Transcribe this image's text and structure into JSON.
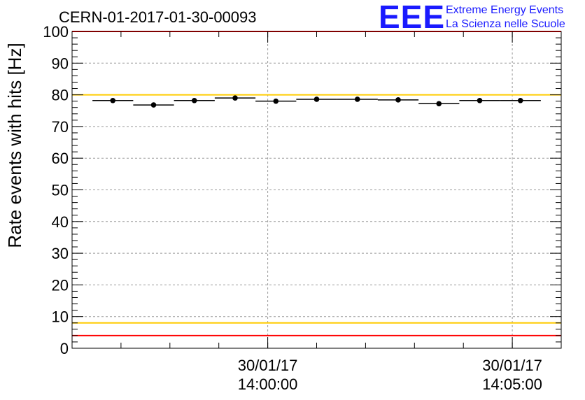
{
  "chart_data": {
    "type": "scatter",
    "title": "CERN-01-2017-01-30-00093",
    "ylabel": "Rate events with hits [Hz]",
    "xlabel": "",
    "ylim": [
      0,
      100
    ],
    "yticks": [
      "0",
      "10",
      "20",
      "30",
      "40",
      "50",
      "60",
      "70",
      "80",
      "90",
      "100"
    ],
    "xlim": [
      "13:56:00",
      "14:06:00"
    ],
    "xticks": [
      {
        "time": "14:00:00",
        "date": "30/01/17"
      },
      {
        "time": "14:05:00",
        "date": "30/01/17"
      }
    ],
    "grid": true,
    "bin_width_seconds": 50,
    "x": [
      "13:56:50",
      "13:57:40",
      "13:58:30",
      "13:59:20",
      "14:00:10",
      "14:01:00",
      "14:01:50",
      "14:02:40",
      "14:03:30",
      "14:04:20",
      "14:05:10"
    ],
    "values": [
      78.2,
      76.8,
      78.2,
      79.0,
      78.0,
      78.6,
      78.6,
      78.4,
      77.2,
      78.2,
      78.2
    ],
    "error": 0.6,
    "reference_lines": [
      {
        "value": 100,
        "color": "#ff0000"
      },
      {
        "value": 80,
        "color": "#ffcc00"
      },
      {
        "value": 8,
        "color": "#ffcc00"
      },
      {
        "value": 4,
        "color": "#ff0000"
      }
    ],
    "marker_color": "#000000"
  },
  "logo": {
    "mark": "EEE",
    "line1": "Extreme Energy Events",
    "line2": "La Scienza nelle Scuole",
    "color": "#1a1aff"
  }
}
